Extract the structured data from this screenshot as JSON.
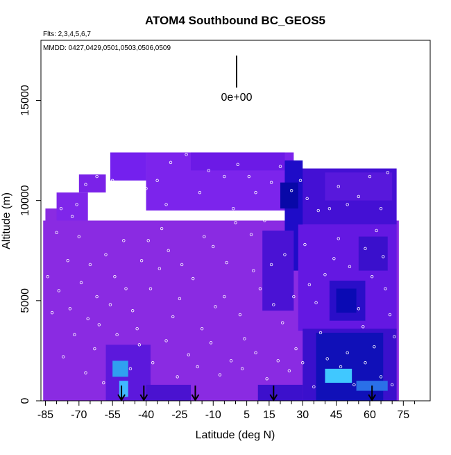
{
  "chart_data": {
    "type": "heatmap",
    "title": "ATOM4 Southbound BC_GEOS5",
    "flights_label": "Flts: 2,3,4,5,6,7",
    "dates_label": "MMDD: 0427,0429,0501,0503,0506,0509",
    "xlabel": "Latitude (deg N)",
    "ylabel": "Altitude (m)",
    "xlim": [
      -87,
      87
    ],
    "ylim": [
      0,
      18000
    ],
    "x_ticks": [
      -85,
      -70,
      -55,
      -40,
      -25,
      -10,
      5,
      15,
      30,
      45,
      60,
      75
    ],
    "x_tick_labels": [
      "-85",
      "-70",
      "-55",
      "-40",
      "-25",
      "-10",
      "5",
      "15",
      "30",
      "45",
      "60",
      "75"
    ],
    "x_minor_ticks": [
      -80,
      -75,
      -65,
      -60,
      -50,
      -45,
      -35,
      -30,
      -20,
      -15,
      -5,
      0,
      10,
      20,
      25,
      35,
      40,
      50,
      55,
      65,
      70,
      80
    ],
    "y_ticks": [
      0,
      5000,
      10000,
      15000
    ],
    "y_tick_labels": [
      "0",
      "5000",
      "10000",
      "15000"
    ],
    "scale_bar_label": "0e+00",
    "colors": {
      "background_field": "#8a2be2",
      "field_purple": "#7a1cf0",
      "field_violet": "#6a16e0",
      "field_blue": "#3010d0",
      "field_dark_blue": "#0a0ab4",
      "field_cyan": "#40c8ff",
      "marker": "#ffffff",
      "arrow": "#000000"
    },
    "field_cells": [
      {
        "x0": -85,
        "x1": -77,
        "y0": 9600,
        "y1": 3500,
        "c": "#8a2be2"
      },
      {
        "x0": -86,
        "x1": 73,
        "y0": 0,
        "y1": 9000,
        "c": "#8a2be2"
      },
      {
        "x0": -80,
        "x1": -66,
        "y0": 9000,
        "y1": 10400,
        "c": "#7f26ea"
      },
      {
        "x0": -70,
        "x1": -58,
        "y0": 10400,
        "y1": 11300,
        "c": "#7a22e8"
      },
      {
        "x0": -56,
        "x1": -40,
        "y0": 11000,
        "y1": 12400,
        "c": "#7420ee"
      },
      {
        "x0": -40,
        "x1": 26,
        "y0": 9500,
        "y1": 12400,
        "c": "#7c24ec"
      },
      {
        "x0": -20,
        "x1": 22,
        "y0": 11500,
        "y1": 12400,
        "c": "#6c1ae6"
      },
      {
        "x0": 26,
        "x1": 72,
        "y0": 8800,
        "y1": 11600,
        "c": "#4410d4"
      },
      {
        "x0": 40,
        "x1": 70,
        "y0": 10000,
        "y1": 11400,
        "c": "#5818dc"
      },
      {
        "x0": 22,
        "x1": 30,
        "y0": 6500,
        "y1": 12000,
        "c": "#1e0cc8"
      },
      {
        "x0": 20,
        "x1": 28,
        "y0": 9600,
        "y1": 10900,
        "c": "#0808a8"
      },
      {
        "x0": 28,
        "x1": 72,
        "y0": 3500,
        "y1": 8800,
        "c": "#6418e2"
      },
      {
        "x0": 42,
        "x1": 58,
        "y0": 4000,
        "y1": 6000,
        "c": "#2a0ec8"
      },
      {
        "x0": 45,
        "x1": 54,
        "y0": 4400,
        "y1": 5600,
        "c": "#0a0ab4"
      },
      {
        "x0": 55,
        "x1": 68,
        "y0": 6500,
        "y1": 8200,
        "c": "#3a10cc"
      },
      {
        "x0": 12,
        "x1": 26,
        "y0": 4500,
        "y1": 8500,
        "c": "#4a12d4"
      },
      {
        "x0": 30,
        "x1": 72,
        "y0": 0,
        "y1": 3600,
        "c": "#3a10cc"
      },
      {
        "x0": 36,
        "x1": 66,
        "y0": 0,
        "y1": 3400,
        "c": "#1010b8"
      },
      {
        "x0": 40,
        "x1": 52,
        "y0": 900,
        "y1": 1600,
        "c": "#40c8ff"
      },
      {
        "x0": 54,
        "x1": 68,
        "y0": 500,
        "y1": 1000,
        "c": "#2a70e8"
      },
      {
        "x0": -58,
        "x1": -38,
        "y0": 0,
        "y1": 2800,
        "c": "#5c18dc"
      },
      {
        "x0": -55,
        "x1": -48,
        "y0": 1200,
        "y1": 2000,
        "c": "#30a0f0"
      },
      {
        "x0": -52,
        "x1": -48,
        "y0": 200,
        "y1": 1000,
        "c": "#40b8ff"
      },
      {
        "x0": -40,
        "x1": -20,
        "y0": 0,
        "y1": 800,
        "c": "#4a12d0"
      },
      {
        "x0": 10,
        "x1": 30,
        "y0": 0,
        "y1": 800,
        "c": "#3c10cc"
      }
    ],
    "arrows_latitude": [
      -51,
      -41,
      -18,
      17,
      61
    ],
    "markers": [
      {
        "x": -78,
        "y": 9600
      },
      {
        "x": -73,
        "y": 9200
      },
      {
        "x": -67,
        "y": 10800
      },
      {
        "x": -62,
        "y": 11200
      },
      {
        "x": -58,
        "y": 10100
      },
      {
        "x": -52,
        "y": 9200
      },
      {
        "x": -46,
        "y": 10600
      },
      {
        "x": -40,
        "y": 10600
      },
      {
        "x": -35,
        "y": 11000
      },
      {
        "x": -29,
        "y": 11900
      },
      {
        "x": -22,
        "y": 12300
      },
      {
        "x": -12,
        "y": 11500
      },
      {
        "x": -5,
        "y": 11200
      },
      {
        "x": 1,
        "y": 11800
      },
      {
        "x": 6,
        "y": 11200
      },
      {
        "x": 20,
        "y": 11700
      },
      {
        "x": 25,
        "y": 10500
      },
      {
        "x": 32,
        "y": 10100
      },
      {
        "x": 37,
        "y": 9500
      },
      {
        "x": 42,
        "y": 9600
      },
      {
        "x": 50,
        "y": 9800
      },
      {
        "x": 55,
        "y": 10200
      },
      {
        "x": 60,
        "y": 11200
      },
      {
        "x": 68,
        "y": 11400
      },
      {
        "x": 63,
        "y": 8500
      },
      {
        "x": 58,
        "y": 7600
      },
      {
        "x": -80,
        "y": 8400
      },
      {
        "x": -75,
        "y": 7000
      },
      {
        "x": -70,
        "y": 8200
      },
      {
        "x": -65,
        "y": 6800
      },
      {
        "x": -62,
        "y": 5200
      },
      {
        "x": -58,
        "y": 7300
      },
      {
        "x": -54,
        "y": 6200
      },
      {
        "x": -50,
        "y": 8000
      },
      {
        "x": -46,
        "y": 4500
      },
      {
        "x": -42,
        "y": 7000
      },
      {
        "x": -38,
        "y": 5600
      },
      {
        "x": -33,
        "y": 8600
      },
      {
        "x": -28,
        "y": 4200
      },
      {
        "x": -24,
        "y": 6800
      },
      {
        "x": -20,
        "y": 9100
      },
      {
        "x": -15,
        "y": 3600
      },
      {
        "x": -10,
        "y": 7700
      },
      {
        "x": -5,
        "y": 5200
      },
      {
        "x": 0,
        "y": 8900
      },
      {
        "x": 4,
        "y": 3100
      },
      {
        "x": 8,
        "y": 6500
      },
      {
        "x": 13,
        "y": 9000
      },
      {
        "x": 17,
        "y": 4800
      },
      {
        "x": 22,
        "y": 7300
      },
      {
        "x": 27,
        "y": 2600
      },
      {
        "x": 33,
        "y": 5800
      },
      {
        "x": 38,
        "y": 3400
      },
      {
        "x": 44,
        "y": 7100
      },
      {
        "x": 50,
        "y": 2400
      },
      {
        "x": 55,
        "y": 4600
      },
      {
        "x": 62,
        "y": 2700
      },
      {
        "x": 67,
        "y": 5600
      },
      {
        "x": 71,
        "y": 3200
      },
      {
        "x": -82,
        "y": 4400
      },
      {
        "x": -77,
        "y": 2200
      },
      {
        "x": -72,
        "y": 3300
      },
      {
        "x": -67,
        "y": 1400
      },
      {
        "x": -63,
        "y": 2600
      },
      {
        "x": -59,
        "y": 900
      },
      {
        "x": -53,
        "y": 3300
      },
      {
        "x": -47,
        "y": 1600
      },
      {
        "x": -43,
        "y": 2800
      },
      {
        "x": -37,
        "y": 1900
      },
      {
        "x": -31,
        "y": 3000
      },
      {
        "x": -26,
        "y": 1200
      },
      {
        "x": -21,
        "y": 2300
      },
      {
        "x": -17,
        "y": 1700
      },
      {
        "x": -11,
        "y": 2900
      },
      {
        "x": -7,
        "y": 1300
      },
      {
        "x": -2,
        "y": 2000
      },
      {
        "x": 3,
        "y": 1600
      },
      {
        "x": 9,
        "y": 2400
      },
      {
        "x": 14,
        "y": 1100
      },
      {
        "x": 19,
        "y": 2000
      },
      {
        "x": 24,
        "y": 1500
      },
      {
        "x": 30,
        "y": 1900
      },
      {
        "x": 35,
        "y": 700
      },
      {
        "x": 41,
        "y": 2100
      },
      {
        "x": 47,
        "y": 1700
      },
      {
        "x": 53,
        "y": 800
      },
      {
        "x": 58,
        "y": 1900
      },
      {
        "x": 65,
        "y": 1200
      },
      {
        "x": 70,
        "y": 800
      },
      {
        "x": -84,
        "y": 6200
      },
      {
        "x": -79,
        "y": 5500
      },
      {
        "x": -74,
        "y": 4600
      },
      {
        "x": -69,
        "y": 5900
      },
      {
        "x": -66,
        "y": 4100
      },
      {
        "x": -61,
        "y": 3800
      },
      {
        "x": -56,
        "y": 4800
      },
      {
        "x": -49,
        "y": 5600
      },
      {
        "x": -44,
        "y": 3600
      },
      {
        "x": -39,
        "y": 8000
      },
      {
        "x": -34,
        "y": 6600
      },
      {
        "x": -30,
        "y": 7500
      },
      {
        "x": -25,
        "y": 5100
      },
      {
        "x": -19,
        "y": 6100
      },
      {
        "x": -14,
        "y": 8200
      },
      {
        "x": -9,
        "y": 4700
      },
      {
        "x": -4,
        "y": 6900
      },
      {
        "x": 2,
        "y": 4300
      },
      {
        "x": 7,
        "y": 8300
      },
      {
        "x": 11,
        "y": 5600
      },
      {
        "x": 16,
        "y": 6800
      },
      {
        "x": 21,
        "y": 3900
      },
      {
        "x": 26,
        "y": 5200
      },
      {
        "x": 31,
        "y": 7800
      },
      {
        "x": 36,
        "y": 4900
      },
      {
        "x": 40,
        "y": 6300
      },
      {
        "x": 46,
        "y": 8100
      },
      {
        "x": 51,
        "y": 6700
      },
      {
        "x": 57,
        "y": 3700
      },
      {
        "x": 61,
        "y": 6200
      },
      {
        "x": 66,
        "y": 7200
      },
      {
        "x": 69,
        "y": 4300
      },
      {
        "x": -71,
        "y": 9800
      },
      {
        "x": -64,
        "y": 9600
      },
      {
        "x": -55,
        "y": 11000
      },
      {
        "x": -48,
        "y": 9400
      },
      {
        "x": -31,
        "y": 9800
      },
      {
        "x": -16,
        "y": 10400
      },
      {
        "x": -1,
        "y": 9600
      },
      {
        "x": 9,
        "y": 10400
      },
      {
        "x": 16,
        "y": 10900
      },
      {
        "x": 29,
        "y": 11000
      },
      {
        "x": 46,
        "y": 10700
      },
      {
        "x": 65,
        "y": 9600
      }
    ]
  }
}
